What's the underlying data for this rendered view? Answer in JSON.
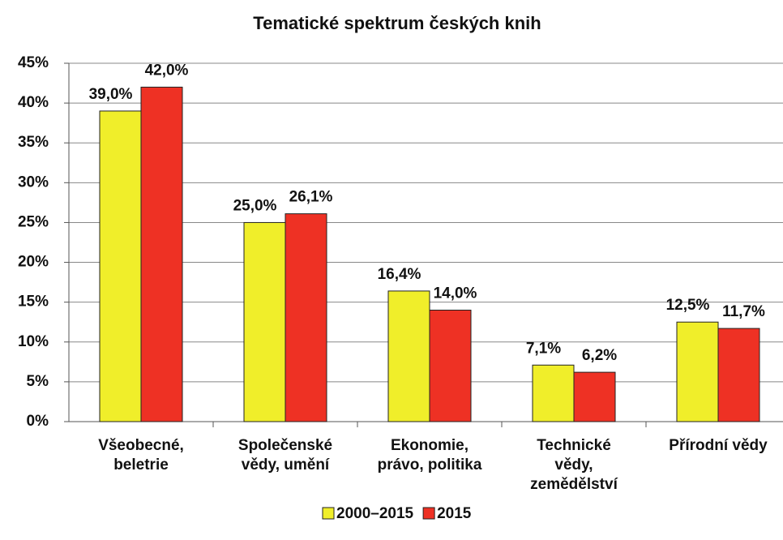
{
  "chart_data": {
    "type": "bar",
    "title": "Tematické spektrum českých knih",
    "categories": [
      "Všeobecné,\nbeletrie",
      "Společenské\nvědy, umění",
      "Ekonomie,\nprávo, politika",
      "Technické\nvědy,\nzemědělství",
      "Přírodní vědy"
    ],
    "series": [
      {
        "name": "2000–2015",
        "color": "#f0ee2a",
        "values": [
          39.0,
          25.0,
          16.4,
          7.1,
          12.5
        ],
        "value_labels": [
          "39,0%",
          "25,0%",
          "16,4%",
          "7,1%",
          "12,5%"
        ]
      },
      {
        "name": "2015",
        "color": "#ee3124",
        "values": [
          42.0,
          26.1,
          14.0,
          6.2,
          11.7
        ],
        "value_labels": [
          "42,0%",
          "26,1%",
          "14,0%",
          "6,2%",
          "11,7%"
        ]
      }
    ],
    "ylim": [
      0,
      45
    ],
    "yticks": [
      {
        "value": 0,
        "label": "0%"
      },
      {
        "value": 5,
        "label": "5%"
      },
      {
        "value": 10,
        "label": "10%"
      },
      {
        "value": 15,
        "label": "15%"
      },
      {
        "value": 20,
        "label": "20%"
      },
      {
        "value": 25,
        "label": "25%"
      },
      {
        "value": 30,
        "label": "30%"
      },
      {
        "value": 35,
        "label": "35%"
      },
      {
        "value": 40,
        "label": "40%"
      },
      {
        "value": 45,
        "label": "45%"
      }
    ],
    "grid": true,
    "legend": "bottom"
  }
}
